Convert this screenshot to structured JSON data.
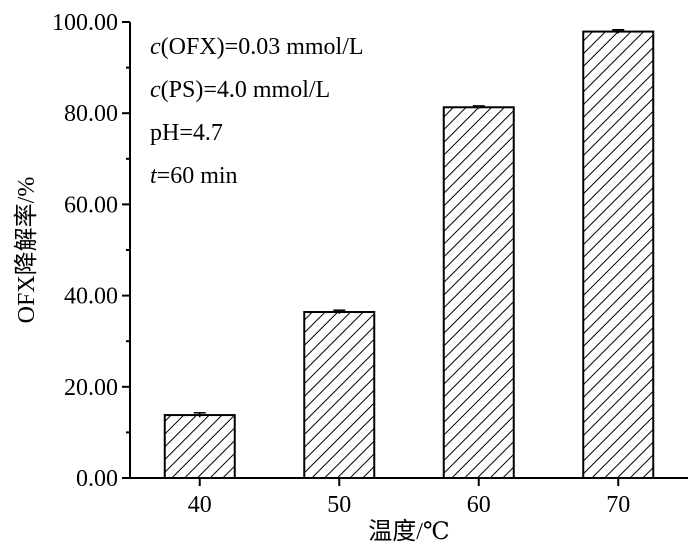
{
  "chart_data": {
    "type": "bar",
    "categories": [
      "40",
      "50",
      "60",
      "70"
    ],
    "values": [
      13.8,
      36.4,
      81.3,
      97.9
    ],
    "errors": [
      0.5,
      0.4,
      0.3,
      0.4
    ],
    "xlabel": "温度/℃",
    "ylabel": "OFX降解率/%",
    "ylim": [
      0,
      100
    ],
    "yticks": [
      0,
      20,
      40,
      60,
      80,
      100
    ],
    "ytick_labels": [
      "0.00",
      "20.00",
      "40.00",
      "60.00",
      "80.00",
      "100.00"
    ],
    "bar_pattern": "diagonal-hatch",
    "annotations": [
      {
        "var": "c",
        "rest": "(OFX)=0.03 mmol/L"
      },
      {
        "var": "c",
        "rest": "(PS)=4.0 mmol/L"
      },
      {
        "var": "",
        "rest": "pH=4.7"
      },
      {
        "var": "t",
        "rest": "=60 min"
      }
    ]
  }
}
